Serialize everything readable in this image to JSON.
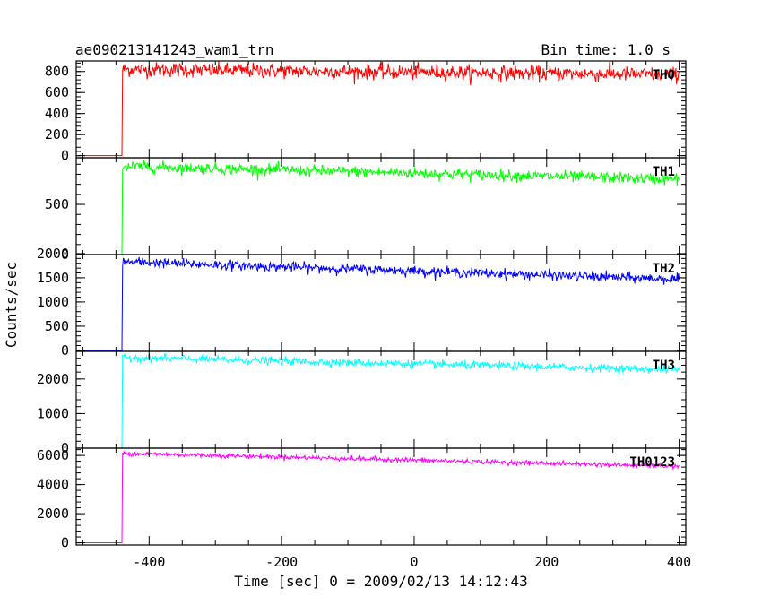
{
  "header": {
    "title": "ae090213141243_wam1_trn",
    "bin_time": "Bin time: 1.0 s"
  },
  "chart_data": {
    "type": "line",
    "xlabel": "Time [sec] 0 = 2009/02/13 14:12:43",
    "ylabel": "Counts/sec",
    "xlim": [
      -510,
      410
    ],
    "xticks": [
      -400,
      -200,
      0,
      200,
      400
    ],
    "x_start": -500,
    "x_end": 400,
    "onset_time": -440,
    "grid": false,
    "legend": "none",
    "series": [
      {
        "name": "TH0",
        "color": "#ff0000",
        "ylim": [
          -20,
          900
        ],
        "yticks": [
          0,
          200,
          400,
          600,
          800
        ],
        "pre_level": 0,
        "peak_level": 820,
        "end_level": 770,
        "noise": 35
      },
      {
        "name": "TH1",
        "color": "#00ff00",
        "ylim": [
          0,
          965
        ],
        "yticks": [
          0,
          500
        ],
        "ytick_labels": [
          "0",
          "500"
        ],
        "pre_level": 0,
        "peak_level": 880,
        "end_level": 750,
        "noise": 28
      },
      {
        "name": "TH2",
        "color": "#0000ff",
        "ylim": [
          -20,
          1980
        ],
        "yticks": [
          0,
          500,
          1000,
          1500,
          2000
        ],
        "pre_level": 0,
        "peak_level": 1830,
        "end_level": 1470,
        "noise": 50
      },
      {
        "name": "TH3",
        "color": "#00ffff",
        "ylim": [
          0,
          2800
        ],
        "yticks": [
          0,
          1000,
          2000
        ],
        "pre_level": 0,
        "peak_level": 2620,
        "end_level": 2270,
        "noise": 55
      },
      {
        "name": "TH0123",
        "color": "#ff00ff",
        "ylim": [
          -150,
          6500
        ],
        "yticks": [
          0,
          2000,
          4000,
          6000
        ],
        "pre_level": 0,
        "peak_level": 6150,
        "end_level": 5250,
        "noise": 80
      }
    ]
  }
}
